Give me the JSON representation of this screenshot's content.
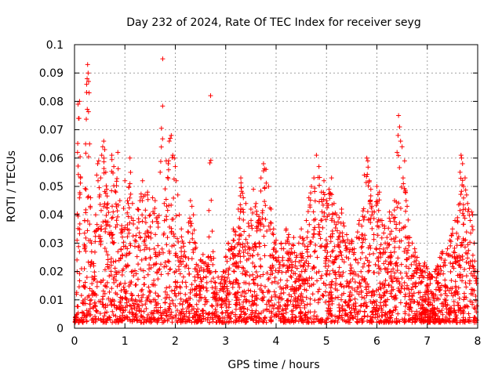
{
  "chart_data": {
    "type": "scatter",
    "title": "Day 232 of 2024, Rate Of TEC Index for receiver seyg",
    "xlabel": "GPS time / hours",
    "ylabel": "ROTI / TECUs",
    "xlim": [
      0,
      8
    ],
    "ylim": [
      0,
      0.1
    ],
    "x_ticks": [
      0,
      1,
      2,
      3,
      4,
      5,
      6,
      7,
      8
    ],
    "y_ticks": [
      0,
      0.01,
      0.02,
      0.03,
      0.04,
      0.05,
      0.06,
      0.07,
      0.08,
      0.09,
      0.1
    ],
    "x_tick_labels": [
      "0",
      "1",
      "2",
      "3",
      "4",
      "5",
      "6",
      "7",
      "8"
    ],
    "y_tick_labels": [
      "0",
      "0.01",
      "0.02",
      "0.03",
      "0.04",
      "0.05",
      "0.06",
      "0.07",
      "0.08",
      "0.09",
      "0.1"
    ],
    "grid": true,
    "marker": "+",
    "color": "#ff0000",
    "series": [
      {
        "name": "ROTI",
        "points": [
          [
            0.02,
            0.004
          ],
          [
            0.04,
            0.012
          ],
          [
            0.05,
            0.031
          ],
          [
            0.06,
            0.062
          ],
          [
            0.07,
            0.079
          ],
          [
            0.08,
            0.074
          ],
          [
            0.09,
            0.074
          ],
          [
            0.1,
            0.08
          ],
          [
            0.12,
            0.053
          ],
          [
            0.14,
            0.021
          ],
          [
            0.16,
            0.009
          ],
          [
            0.18,
            0.015
          ],
          [
            0.2,
            0.038
          ],
          [
            0.22,
            0.065
          ],
          [
            0.24,
            0.086
          ],
          [
            0.25,
            0.088
          ],
          [
            0.26,
            0.093
          ],
          [
            0.27,
            0.09
          ],
          [
            0.28,
            0.087
          ],
          [
            0.29,
            0.083
          ],
          [
            0.3,
            0.065
          ],
          [
            0.32,
            0.046
          ],
          [
            0.34,
            0.027
          ],
          [
            0.36,
            0.012
          ],
          [
            0.38,
            0.022
          ],
          [
            0.4,
            0.034
          ],
          [
            0.42,
            0.04
          ],
          [
            0.44,
            0.054
          ],
          [
            0.46,
            0.058
          ],
          [
            0.48,
            0.059
          ],
          [
            0.5,
            0.047
          ],
          [
            0.52,
            0.053
          ],
          [
            0.54,
            0.061
          ],
          [
            0.56,
            0.064
          ],
          [
            0.58,
            0.066
          ],
          [
            0.6,
            0.063
          ],
          [
            0.62,
            0.055
          ],
          [
            0.64,
            0.049
          ],
          [
            0.66,
            0.044
          ],
          [
            0.7,
            0.036
          ],
          [
            0.74,
            0.061
          ],
          [
            0.78,
            0.057
          ],
          [
            0.82,
            0.048
          ],
          [
            0.86,
            0.062
          ],
          [
            0.9,
            0.045
          ],
          [
            0.95,
            0.034
          ],
          [
            1.0,
            0.052
          ],
          [
            1.05,
            0.045
          ],
          [
            1.1,
            0.06
          ],
          [
            1.15,
            0.044
          ],
          [
            1.2,
            0.031
          ],
          [
            1.25,
            0.042
          ],
          [
            1.3,
            0.045
          ],
          [
            1.35,
            0.052
          ],
          [
            1.4,
            0.047
          ],
          [
            1.45,
            0.048
          ],
          [
            1.5,
            0.04
          ],
          [
            1.55,
            0.046
          ],
          [
            1.6,
            0.045
          ],
          [
            1.65,
            0.039
          ],
          [
            1.7,
            0.055
          ],
          [
            1.75,
            0.095
          ],
          [
            1.78,
            0.044
          ],
          [
            1.82,
            0.059
          ],
          [
            1.86,
            0.058
          ],
          [
            1.88,
            0.066
          ],
          [
            1.9,
            0.067
          ],
          [
            1.92,
            0.068
          ],
          [
            1.95,
            0.061
          ],
          [
            1.98,
            0.06
          ],
          [
            2.0,
            0.057
          ],
          [
            2.02,
            0.052
          ],
          [
            2.05,
            0.047
          ],
          [
            2.08,
            0.04
          ],
          [
            2.12,
            0.035
          ],
          [
            2.16,
            0.03
          ],
          [
            2.2,
            0.025
          ],
          [
            2.25,
            0.034
          ],
          [
            2.3,
            0.045
          ],
          [
            2.33,
            0.043
          ],
          [
            2.36,
            0.04
          ],
          [
            2.4,
            0.03
          ],
          [
            2.45,
            0.022
          ],
          [
            2.5,
            0.024
          ],
          [
            2.55,
            0.026
          ],
          [
            2.6,
            0.023
          ],
          [
            2.65,
            0.025
          ],
          [
            2.7,
            0.082
          ],
          [
            2.75,
            0.027
          ],
          [
            2.8,
            0.02
          ],
          [
            2.85,
            0.018
          ],
          [
            2.9,
            0.016
          ],
          [
            2.95,
            0.02
          ],
          [
            3.0,
            0.025
          ],
          [
            3.05,
            0.03
          ],
          [
            3.1,
            0.028
          ],
          [
            3.15,
            0.035
          ],
          [
            3.2,
            0.034
          ],
          [
            3.25,
            0.042
          ],
          [
            3.3,
            0.053
          ],
          [
            3.35,
            0.046
          ],
          [
            3.4,
            0.044
          ],
          [
            3.45,
            0.037
          ],
          [
            3.5,
            0.042
          ],
          [
            3.55,
            0.049
          ],
          [
            3.6,
            0.044
          ],
          [
            3.65,
            0.038
          ],
          [
            3.7,
            0.053
          ],
          [
            3.75,
            0.058
          ],
          [
            3.8,
            0.056
          ],
          [
            3.85,
            0.05
          ],
          [
            3.9,
            0.042
          ],
          [
            3.95,
            0.035
          ],
          [
            4.0,
            0.031
          ],
          [
            4.05,
            0.025
          ],
          [
            4.1,
            0.03
          ],
          [
            4.15,
            0.028
          ],
          [
            4.2,
            0.035
          ],
          [
            4.25,
            0.033
          ],
          [
            4.3,
            0.028
          ],
          [
            4.35,
            0.032
          ],
          [
            4.4,
            0.025
          ],
          [
            4.45,
            0.03
          ],
          [
            4.5,
            0.035
          ],
          [
            4.55,
            0.031
          ],
          [
            4.6,
            0.038
          ],
          [
            4.65,
            0.046
          ],
          [
            4.7,
            0.05
          ],
          [
            4.75,
            0.053
          ],
          [
            4.8,
            0.061
          ],
          [
            4.85,
            0.057
          ],
          [
            4.9,
            0.048
          ],
          [
            4.95,
            0.052
          ],
          [
            5.0,
            0.045
          ],
          [
            5.05,
            0.049
          ],
          [
            5.1,
            0.053
          ],
          [
            5.15,
            0.044
          ],
          [
            5.2,
            0.04
          ],
          [
            5.25,
            0.039
          ],
          [
            5.3,
            0.042
          ],
          [
            5.35,
            0.036
          ],
          [
            5.4,
            0.033
          ],
          [
            5.45,
            0.03
          ],
          [
            5.5,
            0.031
          ],
          [
            5.55,
            0.028
          ],
          [
            5.6,
            0.032
          ],
          [
            5.65,
            0.038
          ],
          [
            5.7,
            0.036
          ],
          [
            5.75,
            0.054
          ],
          [
            5.8,
            0.06
          ],
          [
            5.82,
            0.059
          ],
          [
            5.85,
            0.052
          ],
          [
            5.88,
            0.049
          ],
          [
            5.9,
            0.043
          ],
          [
            5.95,
            0.041
          ],
          [
            6.0,
            0.05
          ],
          [
            6.05,
            0.048
          ],
          [
            6.1,
            0.038
          ],
          [
            6.15,
            0.036
          ],
          [
            6.2,
            0.032
          ],
          [
            6.25,
            0.041
          ],
          [
            6.3,
            0.04
          ],
          [
            6.35,
            0.045
          ],
          [
            6.4,
            0.062
          ],
          [
            6.42,
            0.068
          ],
          [
            6.43,
            0.075
          ],
          [
            6.45,
            0.071
          ],
          [
            6.47,
            0.066
          ],
          [
            6.5,
            0.064
          ],
          [
            6.52,
            0.053
          ],
          [
            6.55,
            0.059
          ],
          [
            6.58,
            0.045
          ],
          [
            6.6,
            0.043
          ],
          [
            6.65,
            0.032
          ],
          [
            6.7,
            0.03
          ],
          [
            6.75,
            0.028
          ],
          [
            6.8,
            0.025
          ],
          [
            6.85,
            0.022
          ],
          [
            6.9,
            0.02
          ],
          [
            6.95,
            0.023
          ],
          [
            7.0,
            0.021
          ],
          [
            7.05,
            0.019
          ],
          [
            7.1,
            0.018
          ],
          [
            7.15,
            0.02
          ],
          [
            7.2,
            0.022
          ],
          [
            7.25,
            0.025
          ],
          [
            7.3,
            0.027
          ],
          [
            7.35,
            0.024
          ],
          [
            7.4,
            0.028
          ],
          [
            7.45,
            0.031
          ],
          [
            7.5,
            0.035
          ],
          [
            7.55,
            0.038
          ],
          [
            7.6,
            0.039
          ],
          [
            7.65,
            0.055
          ],
          [
            7.67,
            0.061
          ],
          [
            7.68,
            0.06
          ],
          [
            7.7,
            0.058
          ],
          [
            7.72,
            0.05
          ],
          [
            7.75,
            0.053
          ],
          [
            7.78,
            0.047
          ],
          [
            7.8,
            0.044
          ],
          [
            7.82,
            0.042
          ],
          [
            7.85,
            0.038
          ],
          [
            7.88,
            0.041
          ],
          [
            7.9,
            0.04
          ],
          [
            7.93,
            0.03
          ],
          [
            7.95,
            0.02
          ]
        ]
      }
    ]
  }
}
